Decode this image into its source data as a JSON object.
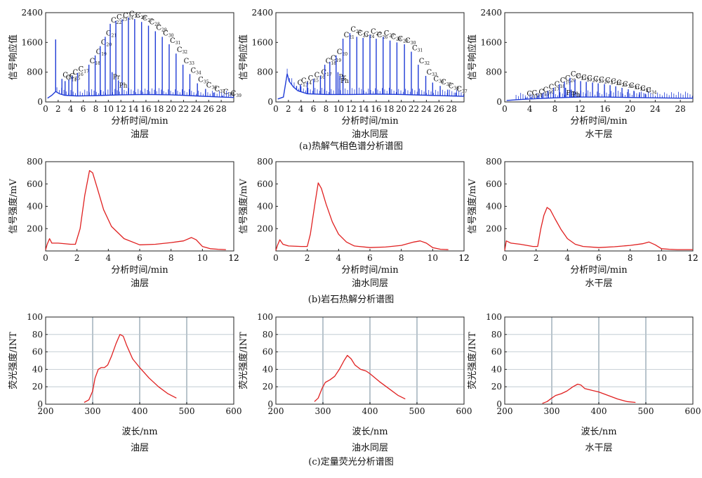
{
  "figure": {
    "captions": [
      "(a)热解气相色谱分析谱图",
      "(b)岩石热解分析谱图",
      "(c)定量荧光分析谱图"
    ]
  },
  "colors": {
    "gc": "#1f3bd6",
    "red": "#e02020",
    "grid": "#b8c4cc",
    "axis": "#222222"
  },
  "chart_data": [
    {
      "type": "line",
      "row": 0,
      "col": 0,
      "subtitle": "油层",
      "xlabel": "分析时间/min",
      "ylabel": "信号响应值",
      "xlim": [
        0,
        30
      ],
      "ylim": [
        0,
        2400
      ],
      "xticks": [
        0,
        2,
        4,
        6,
        8,
        10,
        12,
        14,
        16,
        18,
        20,
        22,
        24,
        26,
        28
      ],
      "yticks": [
        0,
        800,
        1600,
        2400
      ],
      "baseline": [
        [
          0.3,
          100
        ],
        [
          1.0,
          180
        ],
        [
          1.6,
          280
        ],
        [
          2.2,
          220
        ],
        [
          3,
          180
        ],
        [
          5,
          160
        ],
        [
          8,
          170
        ],
        [
          12,
          190
        ],
        [
          16,
          200
        ],
        [
          20,
          190
        ],
        [
          24,
          160
        ],
        [
          28,
          130
        ],
        [
          30,
          120
        ]
      ],
      "peaks": [
        {
          "x": 1.6,
          "y": 1680,
          "label": ""
        },
        {
          "x": 2.6,
          "y": 620,
          "label": "C13"
        },
        {
          "x": 3.1,
          "y": 560,
          "label": "C14"
        },
        {
          "x": 3.7,
          "y": 600,
          "label": "C15"
        },
        {
          "x": 4.2,
          "y": 700,
          "label": "C16"
        },
        {
          "x": 5.1,
          "y": 780,
          "label": "C17"
        },
        {
          "x": 6.9,
          "y": 1000,
          "label": "C18"
        },
        {
          "x": 7.9,
          "y": 1250,
          "label": "C19"
        },
        {
          "x": 8.7,
          "y": 1500,
          "label": "C20"
        },
        {
          "x": 9.5,
          "y": 1750,
          "label": "C21"
        },
        {
          "x": 10.3,
          "y": 2100,
          "label": "C22"
        },
        {
          "x": 11.2,
          "y": 2180,
          "label": "C23"
        },
        {
          "x": 12.2,
          "y": 2220,
          "label": "C24"
        },
        {
          "x": 13.2,
          "y": 2270,
          "label": "C25"
        },
        {
          "x": 14.2,
          "y": 2230,
          "label": "C26"
        },
        {
          "x": 15.3,
          "y": 2150,
          "label": "C27"
        },
        {
          "x": 16.4,
          "y": 2050,
          "label": "C28"
        },
        {
          "x": 17.5,
          "y": 1900,
          "label": "C29"
        },
        {
          "x": 18.6,
          "y": 1750,
          "label": "C30"
        },
        {
          "x": 19.7,
          "y": 1550,
          "label": "C31"
        },
        {
          "x": 20.8,
          "y": 1300,
          "label": "C32"
        },
        {
          "x": 21.9,
          "y": 1000,
          "label": "C33"
        },
        {
          "x": 23.0,
          "y": 750,
          "label": "C34"
        },
        {
          "x": 24.2,
          "y": 500,
          "label": "C35"
        },
        {
          "x": 25.5,
          "y": 350,
          "label": "C36"
        },
        {
          "x": 26.8,
          "y": 250,
          "label": "C37"
        },
        {
          "x": 28.2,
          "y": 170,
          "label": "C38"
        },
        {
          "x": 29.4,
          "y": 130,
          "label": "C39"
        },
        {
          "x": 10.6,
          "y": 800,
          "label": "Pr"
        },
        {
          "x": 11.6,
          "y": 580,
          "label": "Ph"
        }
      ]
    },
    {
      "type": "line",
      "row": 0,
      "col": 1,
      "subtitle": "油水同层",
      "xlabel": "分析时间/min",
      "ylabel": "信号响应值",
      "xlim": [
        0,
        30
      ],
      "ylim": [
        0,
        2400
      ],
      "xticks": [
        0,
        2,
        4,
        6,
        8,
        10,
        12,
        14,
        16,
        18,
        20,
        22,
        24,
        26,
        28
      ],
      "yticks": [
        0,
        800,
        1600,
        2400
      ],
      "baseline": [
        [
          0.3,
          80
        ],
        [
          1.2,
          130
        ],
        [
          1.8,
          760
        ],
        [
          2.1,
          560
        ],
        [
          2.8,
          400
        ],
        [
          3.5,
          300
        ],
        [
          5,
          220
        ],
        [
          8,
          200
        ],
        [
          12,
          200
        ],
        [
          16,
          210
        ],
        [
          20,
          200
        ],
        [
          24,
          180
        ],
        [
          28,
          160
        ],
        [
          30,
          150
        ]
      ],
      "peaks": [
        {
          "x": 3.3,
          "y": 420,
          "label": "C13"
        },
        {
          "x": 3.9,
          "y": 470,
          "label": "C14"
        },
        {
          "x": 5.0,
          "y": 540,
          "label": "C15"
        },
        {
          "x": 6.0,
          "y": 620,
          "label": "C16"
        },
        {
          "x": 7.1,
          "y": 700,
          "label": "C17"
        },
        {
          "x": 7.8,
          "y": 1000,
          "label": "C18"
        },
        {
          "x": 8.6,
          "y": 1080,
          "label": "C19"
        },
        {
          "x": 9.6,
          "y": 1250,
          "label": "C20"
        },
        {
          "x": 10.7,
          "y": 1700,
          "label": "C21"
        },
        {
          "x": 11.8,
          "y": 1850,
          "label": "C22"
        },
        {
          "x": 12.9,
          "y": 1750,
          "label": "C23"
        },
        {
          "x": 13.9,
          "y": 1720,
          "label": "C24"
        },
        {
          "x": 15.0,
          "y": 1800,
          "label": "C25"
        },
        {
          "x": 16.0,
          "y": 1700,
          "label": "C26"
        },
        {
          "x": 17.1,
          "y": 1750,
          "label": "C27"
        },
        {
          "x": 18.2,
          "y": 1650,
          "label": "C28"
        },
        {
          "x": 19.3,
          "y": 1600,
          "label": "C29"
        },
        {
          "x": 20.5,
          "y": 1550,
          "label": "C30"
        },
        {
          "x": 21.6,
          "y": 1350,
          "label": "C31"
        },
        {
          "x": 22.7,
          "y": 1000,
          "label": "C32"
        },
        {
          "x": 23.9,
          "y": 700,
          "label": "C33"
        },
        {
          "x": 25.0,
          "y": 520,
          "label": "C34"
        },
        {
          "x": 26.2,
          "y": 430,
          "label": "C35"
        },
        {
          "x": 27.4,
          "y": 330,
          "label": "C36"
        },
        {
          "x": 28.7,
          "y": 250,
          "label": "C37"
        },
        {
          "x": 9.9,
          "y": 800,
          "label": "Pr"
        },
        {
          "x": 10.2,
          "y": 700,
          "label": "Ph"
        }
      ]
    },
    {
      "type": "line",
      "row": 0,
      "col": 2,
      "subtitle": "水干层",
      "xlabel": "分析时间/min",
      "ylabel": "信号响应值",
      "xlim": [
        0,
        30
      ],
      "ylim": [
        0,
        2400
      ],
      "xticks": [
        0,
        4,
        8,
        12,
        16,
        20,
        24,
        28
      ],
      "yticks": [
        0,
        800,
        1600,
        2400
      ],
      "baseline": [
        [
          0.3,
          40
        ],
        [
          2,
          60
        ],
        [
          4,
          80
        ],
        [
          8,
          110
        ],
        [
          12,
          130
        ],
        [
          16,
          130
        ],
        [
          20,
          120
        ],
        [
          24,
          110
        ],
        [
          28,
          100
        ],
        [
          30,
          100
        ]
      ],
      "peaks": [
        {
          "x": 3.4,
          "y": 120,
          "label": "C13"
        },
        {
          "x": 4.2,
          "y": 140,
          "label": "C14"
        },
        {
          "x": 5.3,
          "y": 170,
          "label": "C15"
        },
        {
          "x": 6.0,
          "y": 230,
          "label": "C16"
        },
        {
          "x": 6.9,
          "y": 300,
          "label": "C17"
        },
        {
          "x": 7.8,
          "y": 380,
          "label": "C18"
        },
        {
          "x": 8.7,
          "y": 480,
          "label": "C19"
        },
        {
          "x": 9.5,
          "y": 540,
          "label": "C20"
        },
        {
          "x": 10.4,
          "y": 650,
          "label": "C21"
        },
        {
          "x": 11.2,
          "y": 600,
          "label": "C22"
        },
        {
          "x": 12.1,
          "y": 560,
          "label": "C23"
        },
        {
          "x": 13.0,
          "y": 540,
          "label": "C24"
        },
        {
          "x": 14.0,
          "y": 520,
          "label": "C25"
        },
        {
          "x": 14.9,
          "y": 500,
          "label": "C26"
        },
        {
          "x": 15.9,
          "y": 480,
          "label": "C27"
        },
        {
          "x": 16.8,
          "y": 450,
          "label": "C28"
        },
        {
          "x": 17.7,
          "y": 420,
          "label": "C29"
        },
        {
          "x": 18.7,
          "y": 380,
          "label": "C30"
        },
        {
          "x": 19.7,
          "y": 340,
          "label": "C31"
        },
        {
          "x": 20.6,
          "y": 300,
          "label": "C32"
        },
        {
          "x": 21.5,
          "y": 260,
          "label": "C33"
        },
        {
          "x": 22.4,
          "y": 220,
          "label": "C34"
        },
        {
          "x": 9.7,
          "y": 380,
          "label": "Pr"
        },
        {
          "x": 10.6,
          "y": 330,
          "label": "Ph"
        }
      ]
    },
    {
      "type": "line",
      "row": 1,
      "col": 0,
      "subtitle": "油层",
      "xlabel": "分析时间/min",
      "ylabel": "信号强度/mV",
      "xlim": [
        0,
        12
      ],
      "ylim": [
        0,
        800
      ],
      "xticks": [
        0,
        2,
        4,
        6,
        8,
        10,
        12
      ],
      "yticks": [
        200,
        400,
        600,
        800
      ],
      "points": [
        [
          0,
          10
        ],
        [
          0.1,
          60
        ],
        [
          0.25,
          110
        ],
        [
          0.4,
          70
        ],
        [
          0.8,
          70
        ],
        [
          1.6,
          60
        ],
        [
          1.9,
          60
        ],
        [
          2.2,
          200
        ],
        [
          2.5,
          500
        ],
        [
          2.8,
          720
        ],
        [
          3.0,
          700
        ],
        [
          3.3,
          560
        ],
        [
          3.7,
          370
        ],
        [
          4.2,
          220
        ],
        [
          5.0,
          110
        ],
        [
          6.0,
          55
        ],
        [
          7.0,
          60
        ],
        [
          8.0,
          75
        ],
        [
          8.8,
          90
        ],
        [
          9.3,
          120
        ],
        [
          9.6,
          100
        ],
        [
          10.0,
          40
        ],
        [
          10.5,
          20
        ],
        [
          11.0,
          15
        ],
        [
          11.5,
          12
        ]
      ]
    },
    {
      "type": "line",
      "row": 1,
      "col": 1,
      "subtitle": "油水同层",
      "xlabel": "分析时间/min",
      "ylabel": "信号强度/mV",
      "xlim": [
        0,
        12
      ],
      "ylim": [
        0,
        800
      ],
      "xticks": [
        0,
        2,
        4,
        6,
        8,
        10,
        12
      ],
      "yticks": [
        200,
        400,
        600,
        800
      ],
      "points": [
        [
          0,
          5
        ],
        [
          0.1,
          50
        ],
        [
          0.25,
          100
        ],
        [
          0.45,
          60
        ],
        [
          0.8,
          45
        ],
        [
          1.6,
          40
        ],
        [
          2.0,
          40
        ],
        [
          2.2,
          150
        ],
        [
          2.5,
          430
        ],
        [
          2.7,
          610
        ],
        [
          2.9,
          560
        ],
        [
          3.2,
          420
        ],
        [
          3.6,
          260
        ],
        [
          4.0,
          150
        ],
        [
          4.5,
          80
        ],
        [
          5.0,
          45
        ],
        [
          6.0,
          30
        ],
        [
          7.0,
          35
        ],
        [
          8.0,
          50
        ],
        [
          8.8,
          80
        ],
        [
          9.2,
          90
        ],
        [
          9.6,
          70
        ],
        [
          10.0,
          30
        ],
        [
          10.5,
          15
        ],
        [
          11.0,
          12
        ]
      ]
    },
    {
      "type": "line",
      "row": 1,
      "col": 2,
      "subtitle": "水干层",
      "xlabel": "分析时间/min",
      "ylabel": "信号强度/mV",
      "xlim": [
        0,
        12
      ],
      "ylim": [
        0,
        800
      ],
      "xticks": [
        0,
        2,
        4,
        6,
        8,
        10,
        12
      ],
      "yticks": [
        200,
        400,
        600,
        800
      ],
      "points": [
        [
          0,
          5
        ],
        [
          0.1,
          90
        ],
        [
          0.4,
          70
        ],
        [
          1.0,
          60
        ],
        [
          1.8,
          40
        ],
        [
          2.1,
          40
        ],
        [
          2.3,
          200
        ],
        [
          2.5,
          320
        ],
        [
          2.7,
          390
        ],
        [
          2.9,
          370
        ],
        [
          3.2,
          290
        ],
        [
          3.6,
          190
        ],
        [
          4.0,
          110
        ],
        [
          4.5,
          60
        ],
        [
          5.0,
          40
        ],
        [
          6.0,
          30
        ],
        [
          7.0,
          38
        ],
        [
          8.0,
          50
        ],
        [
          8.8,
          65
        ],
        [
          9.2,
          80
        ],
        [
          9.6,
          55
        ],
        [
          10.0,
          20
        ],
        [
          10.5,
          15
        ],
        [
          11.0,
          12
        ],
        [
          12.0,
          12
        ]
      ]
    },
    {
      "type": "line",
      "row": 2,
      "col": 0,
      "subtitle": "油层",
      "xlabel": "波长/nm",
      "ylabel": "荧光强度/INT",
      "xlim": [
        200,
        600
      ],
      "ylim": [
        0,
        100
      ],
      "xticks": [
        200,
        300,
        400,
        500,
        600
      ],
      "yticks": [
        0,
        20,
        40,
        60,
        80,
        100
      ],
      "points": [
        [
          282,
          2
        ],
        [
          292,
          5
        ],
        [
          300,
          15
        ],
        [
          305,
          30
        ],
        [
          312,
          40
        ],
        [
          318,
          42
        ],
        [
          325,
          42
        ],
        [
          332,
          45
        ],
        [
          340,
          55
        ],
        [
          350,
          70
        ],
        [
          358,
          80
        ],
        [
          365,
          78
        ],
        [
          372,
          68
        ],
        [
          385,
          52
        ],
        [
          400,
          42
        ],
        [
          420,
          30
        ],
        [
          440,
          20
        ],
        [
          460,
          12
        ],
        [
          478,
          7
        ]
      ]
    },
    {
      "type": "line",
      "row": 2,
      "col": 1,
      "subtitle": "油水同层",
      "xlabel": "波长/nm",
      "ylabel": "荧光强度/INT",
      "xlim": [
        200,
        600
      ],
      "ylim": [
        0,
        100
      ],
      "xticks": [
        200,
        300,
        400,
        500,
        600
      ],
      "yticks": [
        0,
        20,
        40,
        60,
        80,
        100
      ],
      "points": [
        [
          282,
          3
        ],
        [
          290,
          7
        ],
        [
          298,
          18
        ],
        [
          305,
          25
        ],
        [
          315,
          28
        ],
        [
          325,
          32
        ],
        [
          335,
          40
        ],
        [
          345,
          50
        ],
        [
          352,
          56
        ],
        [
          360,
          52
        ],
        [
          368,
          45
        ],
        [
          380,
          40
        ],
        [
          392,
          38
        ],
        [
          400,
          35
        ],
        [
          420,
          26
        ],
        [
          440,
          18
        ],
        [
          460,
          10
        ],
        [
          475,
          6
        ]
      ]
    },
    {
      "type": "line",
      "row": 2,
      "col": 2,
      "subtitle": "水干层",
      "xlabel": "波长/nm",
      "ylabel": "荧光强度/INT",
      "xlim": [
        200,
        600
      ],
      "ylim": [
        0,
        100
      ],
      "xticks": [
        200,
        300,
        400,
        500,
        600
      ],
      "yticks": [
        0,
        20,
        40,
        60,
        80,
        100
      ],
      "points": [
        [
          280,
          1
        ],
        [
          290,
          3
        ],
        [
          300,
          7
        ],
        [
          308,
          10
        ],
        [
          320,
          12
        ],
        [
          332,
          15
        ],
        [
          345,
          20
        ],
        [
          355,
          23
        ],
        [
          362,
          22
        ],
        [
          370,
          18
        ],
        [
          385,
          16
        ],
        [
          400,
          14
        ],
        [
          420,
          10
        ],
        [
          440,
          6
        ],
        [
          460,
          3
        ],
        [
          478,
          2
        ]
      ]
    }
  ]
}
